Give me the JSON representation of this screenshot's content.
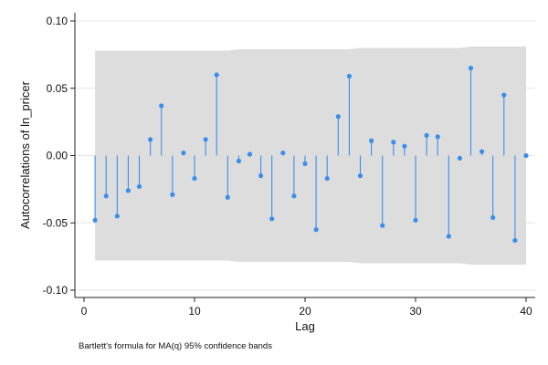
{
  "chart_data": {
    "type": "scatter",
    "style": "spike-plot",
    "xlabel": "Lag",
    "ylabel": "Autocorrelations of ln_pricer",
    "note": "Bartlett's formula for MA(q) 95% confidence bands",
    "xlim": [
      0,
      40
    ],
    "ylim": [
      -0.1,
      0.1
    ],
    "xticks": [
      0,
      10,
      20,
      30,
      40
    ],
    "yticks": [
      -0.1,
      -0.05,
      0.0,
      0.05,
      0.1
    ],
    "ytick_labels": [
      "-0.10",
      "-0.05",
      "0.00",
      "0.05",
      "0.10"
    ],
    "grid": "horizontal",
    "marker_color": "#3b8ee8",
    "band_color": "#dddddd",
    "x": [
      1,
      2,
      3,
      4,
      5,
      6,
      7,
      8,
      9,
      10,
      11,
      12,
      13,
      14,
      15,
      16,
      17,
      18,
      19,
      20,
      21,
      22,
      23,
      24,
      25,
      26,
      27,
      28,
      29,
      30,
      31,
      32,
      33,
      34,
      35,
      36,
      37,
      38,
      39,
      40
    ],
    "values": [
      -0.048,
      -0.03,
      -0.045,
      -0.026,
      -0.023,
      0.012,
      0.037,
      -0.029,
      0.002,
      -0.017,
      0.012,
      0.06,
      -0.031,
      -0.004,
      0.001,
      -0.015,
      -0.047,
      0.002,
      -0.03,
      -0.006,
      -0.055,
      -0.017,
      0.029,
      0.059,
      -0.015,
      0.011,
      -0.052,
      0.01,
      0.007,
      -0.048,
      0.015,
      0.014,
      -0.06,
      -0.002,
      0.065,
      0.003,
      -0.046,
      0.045,
      -0.063,
      0.0
    ],
    "band_upper": [
      0.078,
      0.078,
      0.078,
      0.078,
      0.078,
      0.078,
      0.078,
      0.078,
      0.078,
      0.078,
      0.078,
      0.078,
      0.078,
      0.079,
      0.079,
      0.079,
      0.079,
      0.079,
      0.079,
      0.079,
      0.079,
      0.079,
      0.079,
      0.079,
      0.08,
      0.08,
      0.08,
      0.08,
      0.08,
      0.08,
      0.08,
      0.08,
      0.08,
      0.08,
      0.081,
      0.081,
      0.081,
      0.081,
      0.081,
      0.081
    ],
    "band_lower": [
      -0.078,
      -0.078,
      -0.078,
      -0.078,
      -0.078,
      -0.078,
      -0.078,
      -0.078,
      -0.078,
      -0.078,
      -0.078,
      -0.078,
      -0.078,
      -0.079,
      -0.079,
      -0.079,
      -0.079,
      -0.079,
      -0.079,
      -0.079,
      -0.079,
      -0.079,
      -0.079,
      -0.079,
      -0.08,
      -0.08,
      -0.08,
      -0.08,
      -0.08,
      -0.08,
      -0.08,
      -0.08,
      -0.08,
      -0.08,
      -0.081,
      -0.081,
      -0.081,
      -0.081,
      -0.081,
      -0.081
    ]
  }
}
